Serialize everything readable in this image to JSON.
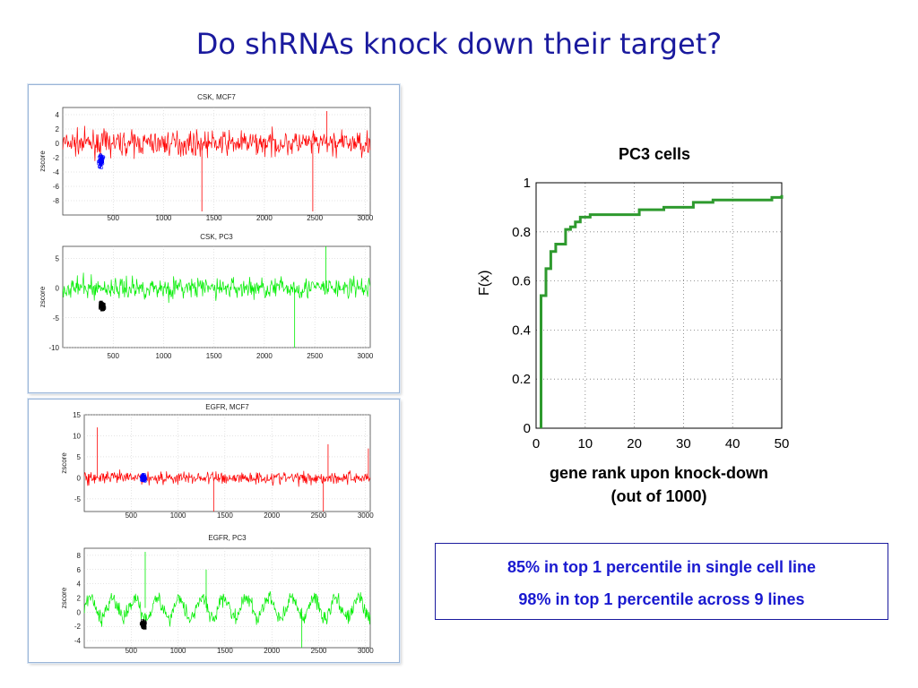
{
  "slide": {
    "title": "Do shRNAs knock down their target?"
  },
  "stats": {
    "line1": "85% in top 1 percentile in single cell line",
    "line2": "98%  in top 1 percentile across 9 lines"
  },
  "chart_data": [
    {
      "type": "scatter",
      "title": "CSK, MCF7",
      "ylabel": "zscore",
      "xlim": [
        0,
        3050
      ],
      "ylim": [
        -10,
        5
      ],
      "xticks": [
        500,
        1000,
        1500,
        2000,
        2500,
        3000
      ],
      "yticks": [
        4,
        2,
        0,
        -2,
        -4,
        -6,
        -8
      ],
      "series": [
        {
          "color": "#ff0000",
          "baseline": 0,
          "noise": 1.2,
          "x_range": [
            1,
            3050
          ]
        },
        {
          "color": "#0000ff",
          "cluster": {
            "x": 380,
            "y": -2.5,
            "spread_x": 30,
            "spread_y": 1.0
          }
        }
      ],
      "spikes": [
        [
          1380,
          -9.5
        ],
        [
          2480,
          -9.5
        ],
        [
          2620,
          4.5
        ]
      ]
    },
    {
      "type": "scatter",
      "title": "CSK, PC3",
      "ylabel": "zscore",
      "xlim": [
        0,
        3050
      ],
      "ylim": [
        -10,
        7
      ],
      "xticks": [
        500,
        1000,
        1500,
        2000,
        2500,
        3000
      ],
      "yticks": [
        5,
        0,
        -5,
        -10
      ],
      "series": [
        {
          "color": "#00ee00",
          "baseline": 0,
          "noise": 1.3,
          "x_range": [
            1,
            3050
          ]
        },
        {
          "color": "#000000",
          "cluster": {
            "x": 390,
            "y": -3.0,
            "spread_x": 25,
            "spread_y": 0.8
          }
        }
      ],
      "spikes": [
        [
          2300,
          -10
        ],
        [
          2610,
          7
        ]
      ]
    },
    {
      "type": "scatter",
      "title": "EGFR, MCF7",
      "ylabel": "zscore",
      "xlim": [
        0,
        3050
      ],
      "ylim": [
        -8,
        15
      ],
      "xticks": [
        500,
        1000,
        1500,
        2000,
        2500,
        3000
      ],
      "yticks": [
        15,
        10,
        5,
        0,
        -5
      ],
      "series": [
        {
          "color": "#ff0000",
          "baseline": 0,
          "noise": 1.1,
          "x_range": [
            1,
            3050
          ]
        },
        {
          "color": "#0000ff",
          "cluster": {
            "x": 630,
            "y": 0,
            "spread_x": 30,
            "spread_y": 0.8
          }
        }
      ],
      "spikes": [
        [
          140,
          12
        ],
        [
          1380,
          -8
        ],
        [
          2550,
          -8
        ],
        [
          2600,
          8
        ],
        [
          3030,
          7
        ]
      ]
    },
    {
      "type": "scatter",
      "title": "EGFR, PC3",
      "ylabel": "zscore",
      "xlim": [
        0,
        3050
      ],
      "ylim": [
        -5,
        9
      ],
      "xticks": [
        500,
        1000,
        1500,
        2000,
        2500,
        3000
      ],
      "yticks": [
        8,
        6,
        4,
        2,
        0,
        -2,
        -4
      ],
      "series": [
        {
          "color": "#00ee00",
          "baseline": 0.6,
          "noise": 0.8,
          "wave": 1.4,
          "x_range": [
            1,
            3050
          ]
        },
        {
          "color": "#000000",
          "cluster": {
            "x": 630,
            "y": -1.7,
            "spread_x": 25,
            "spread_y": 0.5
          }
        }
      ],
      "spikes": [
        [
          650,
          8.5
        ],
        [
          1300,
          6
        ],
        [
          2320,
          -5
        ]
      ]
    },
    {
      "type": "line",
      "title": "PC3 cells",
      "xlabel": "gene rank upon knock-down\n(out of 1000)",
      "ylabel": "F(x)",
      "xlim": [
        0,
        50
      ],
      "ylim": [
        0,
        1
      ],
      "xticks": [
        0,
        10,
        20,
        30,
        40,
        50
      ],
      "yticks": [
        0,
        0.2,
        0.4,
        0.6,
        0.8,
        1
      ],
      "grid": true,
      "color": "#2e9a2e",
      "steps": [
        [
          1,
          0
        ],
        [
          1,
          0.54
        ],
        [
          2,
          0.54
        ],
        [
          2,
          0.65
        ],
        [
          3,
          0.65
        ],
        [
          3,
          0.72
        ],
        [
          4,
          0.72
        ],
        [
          4,
          0.75
        ],
        [
          6,
          0.75
        ],
        [
          6,
          0.81
        ],
        [
          7,
          0.81
        ],
        [
          7,
          0.82
        ],
        [
          8,
          0.82
        ],
        [
          8,
          0.84
        ],
        [
          9,
          0.84
        ],
        [
          9,
          0.86
        ],
        [
          11,
          0.86
        ],
        [
          11,
          0.87
        ],
        [
          21,
          0.87
        ],
        [
          21,
          0.89
        ],
        [
          26,
          0.89
        ],
        [
          26,
          0.9
        ],
        [
          32,
          0.9
        ],
        [
          32,
          0.92
        ],
        [
          36,
          0.92
        ],
        [
          36,
          0.93
        ],
        [
          48,
          0.93
        ],
        [
          48,
          0.94
        ],
        [
          50,
          0.94
        ],
        [
          50,
          0.95
        ]
      ]
    }
  ]
}
